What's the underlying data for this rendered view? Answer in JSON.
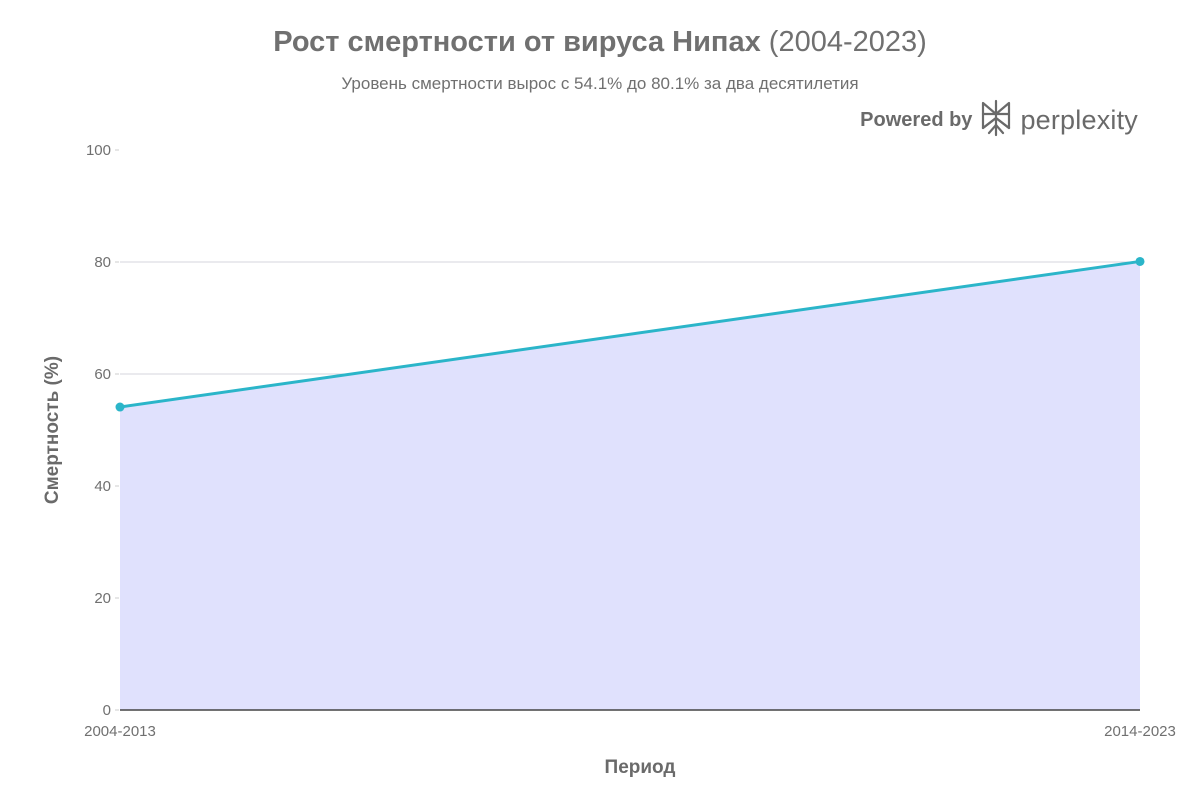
{
  "header": {
    "title_main": "Рост смертности от вируса Нипах",
    "title_rest": "(2004-2023)",
    "subtitle": "Уровень смертности вырос с 54.1% до 80.1% за два десятилетия"
  },
  "branding": {
    "powered_by": "Powered by",
    "brand": "perplexity",
    "logo_icon": "perplexity-logo-icon"
  },
  "chart_data": {
    "type": "area",
    "title": "Рост смертности от вируса Нипах (2004-2023)",
    "subtitle": "Уровень смертности вырос с 54.1% до 80.1% за два десятилетия",
    "xlabel": "Период",
    "ylabel": "Смертность (%)",
    "categories": [
      "2004-2013",
      "2014-2023"
    ],
    "values": [
      54.1,
      80.1
    ],
    "ylim": [
      0,
      100
    ],
    "yticks": [
      0,
      20,
      40,
      60,
      80,
      100
    ],
    "grid": true,
    "legend": "none",
    "colors": {
      "line": "#2bb5c9",
      "fill": "#e0e1fd",
      "grid": "#d5d5de",
      "zero_line": "#444444"
    }
  }
}
